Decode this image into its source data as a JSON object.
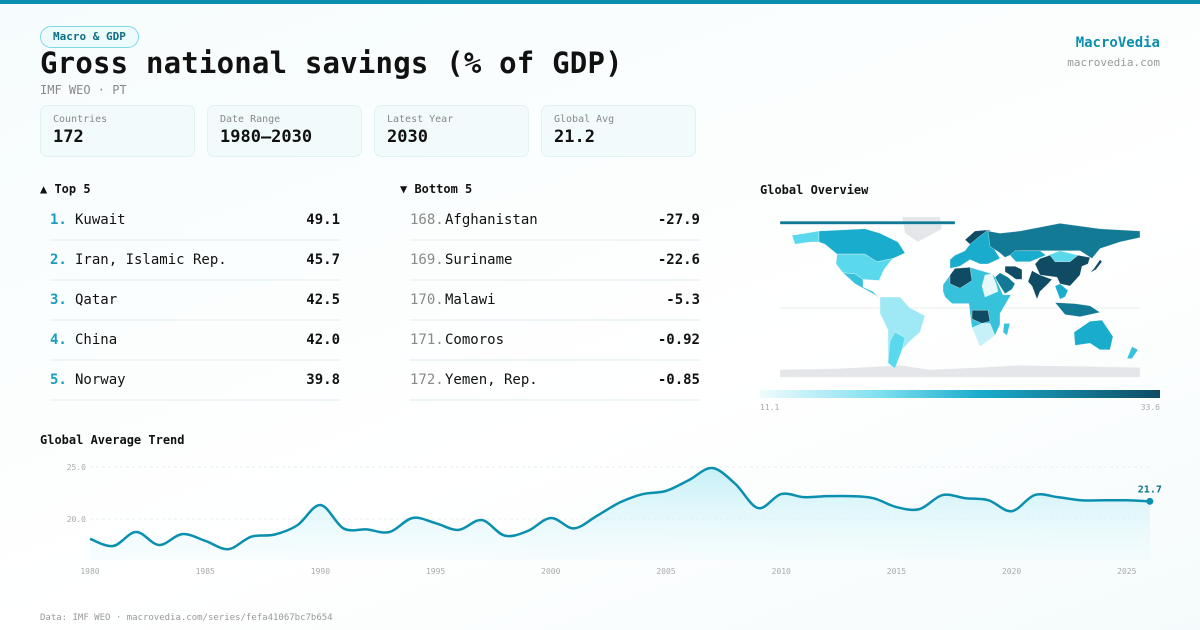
{
  "header": {
    "tag": "Macro & GDP",
    "title": "Gross national savings (% of GDP)",
    "subtitle": "IMF WEO · PT",
    "brand": "MacroVedia",
    "brand_url": "macrovedia.com"
  },
  "stats": [
    {
      "label": "Countries",
      "value": "172"
    },
    {
      "label": "Date Range",
      "value": "1980–2030"
    },
    {
      "label": "Latest Year",
      "value": "2030"
    },
    {
      "label": "Global Avg",
      "value": "21.2"
    }
  ],
  "top": {
    "heading": "▲ Top 5",
    "items": [
      {
        "rank": "1.",
        "name": "Kuwait",
        "value": "49.1"
      },
      {
        "rank": "2.",
        "name": "Iran, Islamic Rep.",
        "value": "45.7"
      },
      {
        "rank": "3.",
        "name": "Qatar",
        "value": "42.5"
      },
      {
        "rank": "4.",
        "name": "China",
        "value": "42.0"
      },
      {
        "rank": "5.",
        "name": "Norway",
        "value": "39.8"
      }
    ]
  },
  "bottom": {
    "heading": "▼ Bottom 5",
    "items": [
      {
        "rank": "168.",
        "name": "Afghanistan",
        "value": "-27.9"
      },
      {
        "rank": "169.",
        "name": "Suriname",
        "value": "-22.6"
      },
      {
        "rank": "170.",
        "name": "Malawi",
        "value": "-5.3"
      },
      {
        "rank": "171.",
        "name": "Comoros",
        "value": "-0.92"
      },
      {
        "rank": "172.",
        "name": "Yemen, Rep.",
        "value": "-0.85"
      }
    ]
  },
  "map": {
    "heading": "Global Overview",
    "legend_min": "11.1",
    "legend_max": "33.6",
    "colors": {
      "low": "#f0fbfd",
      "mid": "#1aaccc",
      "high": "#0f4c64",
      "nodata": "#e4e6ea"
    }
  },
  "chart_data": {
    "type": "area",
    "title": "Global Average Trend",
    "xlabel": "",
    "ylabel": "",
    "x": [
      1980,
      1981,
      1982,
      1983,
      1984,
      1985,
      1986,
      1987,
      1988,
      1989,
      1990,
      1991,
      1992,
      1993,
      1994,
      1995,
      1996,
      1997,
      1998,
      1999,
      2000,
      2001,
      2002,
      2003,
      2004,
      2005,
      2006,
      2007,
      2008,
      2009,
      2010,
      2011,
      2012,
      2013,
      2014,
      2015,
      2016,
      2017,
      2018,
      2019,
      2020,
      2021,
      2022,
      2023,
      2024,
      2025,
      2026
    ],
    "values": [
      18.1,
      17.4,
      18.75,
      17.5,
      18.55,
      17.9,
      17.1,
      18.3,
      18.5,
      19.4,
      21.35,
      19.1,
      19.0,
      18.75,
      20.1,
      19.6,
      18.95,
      19.9,
      18.4,
      18.85,
      20.1,
      19.1,
      20.3,
      21.6,
      22.4,
      22.7,
      23.75,
      24.9,
      23.4,
      21.05,
      22.4,
      22.1,
      22.2,
      22.2,
      22.0,
      21.15,
      20.95,
      22.3,
      22.0,
      21.8,
      20.75,
      22.3,
      22.1,
      21.8,
      21.8,
      21.8,
      21.7
    ],
    "y_ticks": [
      "20.0",
      "25.0"
    ],
    "x_ticks": [
      "1980",
      "1985",
      "1990",
      "1995",
      "2000",
      "2005",
      "2010",
      "2015",
      "2020",
      "2025"
    ],
    "last_label": "21.7",
    "grid": true,
    "color": "#0b8fae"
  },
  "footer": "Data: IMF WEO · macrovedia.com/series/fefa41067bc7b654"
}
